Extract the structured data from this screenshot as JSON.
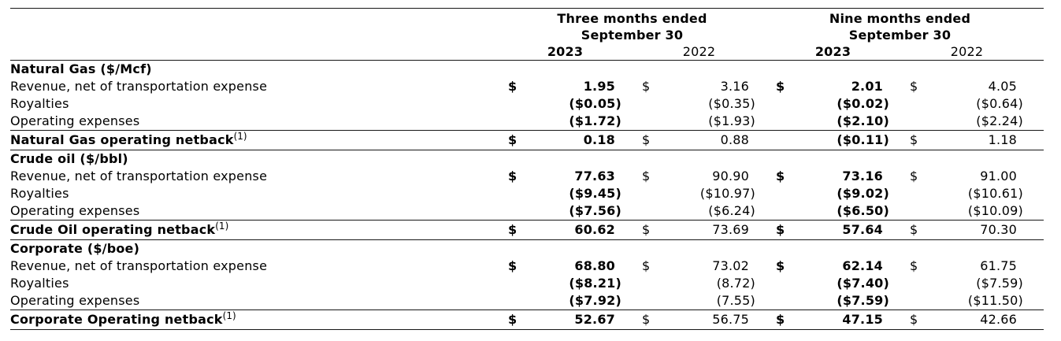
{
  "header": {
    "groups": [
      {
        "line1": "Three months ended",
        "line2": "September 30"
      },
      {
        "line1": "Nine months ended",
        "line2": "September 30"
      }
    ],
    "year_columns": [
      {
        "label": "2023"
      },
      {
        "label": "2022"
      },
      {
        "label": "2023"
      },
      {
        "label": "2022"
      }
    ]
  },
  "rows": [
    {
      "kind": "section",
      "label": "Natural Gas ($/Mcf)"
    },
    {
      "kind": "data",
      "label": "Revenue, net of transportation expense",
      "cells": [
        {
          "cur": "$",
          "val": "1.95"
        },
        {
          "cur": "$",
          "val": "3.16"
        },
        {
          "cur": "$",
          "val": "2.01"
        },
        {
          "cur": "$",
          "val": "4.05"
        }
      ]
    },
    {
      "kind": "data",
      "label": "Royalties",
      "cells": [
        {
          "cur": "",
          "val": "($0.05)"
        },
        {
          "cur": "",
          "val": "($0.35)"
        },
        {
          "cur": "",
          "val": "($0.02)"
        },
        {
          "cur": "",
          "val": "($0.64)"
        }
      ]
    },
    {
      "kind": "data",
      "label": "Operating expenses",
      "cells": [
        {
          "cur": "",
          "val": "($1.72)"
        },
        {
          "cur": "",
          "val": "($1.93)"
        },
        {
          "cur": "",
          "val": "($2.10)"
        },
        {
          "cur": "",
          "val": "($2.24)"
        }
      ]
    },
    {
      "kind": "total",
      "label": "Natural Gas operating netback",
      "footnote": "(1)",
      "cells": [
        {
          "cur": "$",
          "val": "0.18"
        },
        {
          "cur": "$",
          "val": "0.88"
        },
        {
          "cur": "",
          "val": "($0.11)"
        },
        {
          "cur": "$",
          "val": "1.18"
        }
      ]
    },
    {
      "kind": "section",
      "label": "Crude oil ($/bbl)"
    },
    {
      "kind": "data",
      "label": "Revenue, net of transportation expense",
      "cells": [
        {
          "cur": "$",
          "val": "77.63"
        },
        {
          "cur": "$",
          "val": "90.90"
        },
        {
          "cur": "$",
          "val": "73.16"
        },
        {
          "cur": "$",
          "val": "91.00"
        }
      ]
    },
    {
      "kind": "data",
      "label": "Royalties",
      "cells": [
        {
          "cur": "",
          "val": "($9.45)"
        },
        {
          "cur": "",
          "val": "($10.97)"
        },
        {
          "cur": "",
          "val": "($9.02)"
        },
        {
          "cur": "",
          "val": "($10.61)"
        }
      ]
    },
    {
      "kind": "data",
      "label": "Operating expenses",
      "cells": [
        {
          "cur": "",
          "val": "($7.56)"
        },
        {
          "cur": "",
          "val": "($6.24)"
        },
        {
          "cur": "",
          "val": "($6.50)"
        },
        {
          "cur": "",
          "val": "($10.09)"
        }
      ]
    },
    {
      "kind": "total",
      "label": "Crude Oil operating netback",
      "footnote": "(1)",
      "cells": [
        {
          "cur": "$",
          "val": "60.62"
        },
        {
          "cur": "$",
          "val": "73.69"
        },
        {
          "cur": "$",
          "val": "57.64"
        },
        {
          "cur": "$",
          "val": "70.30"
        }
      ]
    },
    {
      "kind": "section",
      "label": "Corporate ($/boe)"
    },
    {
      "kind": "data",
      "label": "Revenue, net of transportation expense",
      "cells": [
        {
          "cur": "$",
          "val": "68.80"
        },
        {
          "cur": "$",
          "val": "73.02"
        },
        {
          "cur": "$",
          "val": "62.14"
        },
        {
          "cur": "$",
          "val": "61.75"
        }
      ]
    },
    {
      "kind": "data",
      "label": "Royalties",
      "cells": [
        {
          "cur": "",
          "val": "($8.21)"
        },
        {
          "cur": "",
          "val": "(8.72)"
        },
        {
          "cur": "",
          "val": "($7.40)"
        },
        {
          "cur": "",
          "val": "($7.59)"
        }
      ]
    },
    {
      "kind": "data",
      "label": "Operating expenses",
      "cells": [
        {
          "cur": "",
          "val": "($7.92)"
        },
        {
          "cur": "",
          "val": "(7.55)"
        },
        {
          "cur": "",
          "val": "($7.59)"
        },
        {
          "cur": "",
          "val": "($11.50)"
        }
      ]
    },
    {
      "kind": "total",
      "label": "Corporate Operating netback",
      "footnote": "(1)",
      "cells": [
        {
          "cur": "$",
          "val": "52.67"
        },
        {
          "cur": "$",
          "val": "56.75"
        },
        {
          "cur": "$",
          "val": "47.15"
        },
        {
          "cur": "$",
          "val": "42.66"
        }
      ]
    }
  ],
  "colors": {
    "text": "#000000",
    "rule": "#161616",
    "background": "#ffffff"
  }
}
